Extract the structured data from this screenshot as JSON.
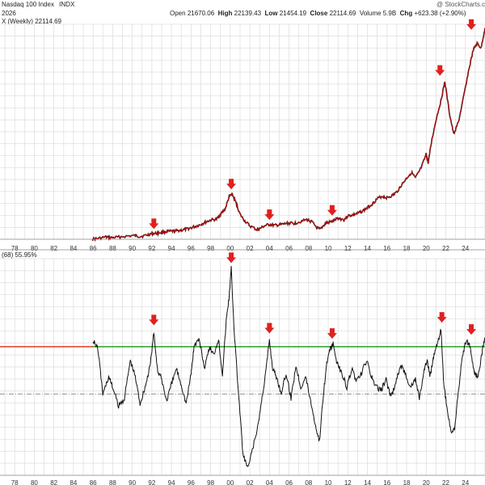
{
  "header": {
    "index_name": "Nasdaq 100 Index",
    "exchange": "INDX",
    "date_fragment": "2026",
    "watermark": "@ StockCharts.com",
    "open_label": "Open",
    "open_value": "21670.06",
    "high_label": "High",
    "high_value": "22139.43",
    "low_label": "Low",
    "low_value": "21454.19",
    "close_label": "Close",
    "close_value": "22114.69",
    "volume_label": "Volume",
    "volume_value": "5.9B",
    "chg_label": "Chg",
    "chg_value": "+623.38 (+2.90%)",
    "upper_legend": "X (Weekly) 22114.69",
    "lower_legend": "(68) 55.95%"
  },
  "chart_data": [
    {
      "type": "line",
      "panel": "upper",
      "series": [
        {
          "color": "#c00000",
          "x": [
            1985.9,
            1986.5,
            1987.3,
            1987.8,
            1988.5,
            1989.5,
            1990.3,
            1990.8,
            1991.5,
            1992.0,
            1992.5,
            1993.0,
            1993.5,
            1994.0,
            1994.5,
            1995.0,
            1995.5,
            1996.0,
            1996.5,
            1997.0,
            1997.5,
            1998.0,
            1998.6,
            1999.0,
            1999.5,
            1999.9,
            2000.2,
            2000.6,
            2001.0,
            2001.5,
            2002.0,
            2002.7,
            2003.0,
            2003.5,
            2004.0,
            2004.5,
            2005.0,
            2005.5,
            2006.0,
            2006.5,
            2007.0,
            2007.8,
            2008.3,
            2008.9,
            2009.2,
            2009.7,
            2010.0,
            2010.5,
            2011.0,
            2011.6,
            2012.0,
            2012.5,
            2013.0,
            2013.5,
            2014.0,
            2014.5,
            2015.0,
            2015.5,
            2016.0,
            2016.5,
            2017.0,
            2017.5,
            2018.0,
            2018.5,
            2018.9,
            2019.5,
            2020.0,
            2020.2,
            2020.6,
            2021.0,
            2021.5,
            2021.9,
            2022.4,
            2022.8,
            2023.3,
            2023.8,
            2024.3,
            2024.8,
            2025.2,
            2025.6,
            2026.0
          ],
          "y": [
            15,
            80,
            230,
            150,
            220,
            330,
            380,
            280,
            430,
            590,
            620,
            720,
            800,
            830,
            870,
            950,
            1050,
            1200,
            1350,
            1550,
            1800,
            2000,
            2100,
            2600,
            3200,
            4500,
            4700,
            3800,
            2600,
            1900,
            1400,
            1000,
            1100,
            1400,
            1550,
            1450,
            1500,
            1600,
            1700,
            1650,
            1800,
            2050,
            1850,
            1150,
            1050,
            1650,
            1750,
            1900,
            2200,
            2050,
            2450,
            2550,
            2700,
            2950,
            3300,
            3700,
            4250,
            4500,
            4350,
            4550,
            4950,
            5700,
            6400,
            7000,
            6400,
            7500,
            8900,
            8000,
            10500,
            12500,
            14500,
            16500,
            13000,
            11000,
            12300,
            14800,
            17500,
            19800,
            20500,
            20000,
            22114.69
          ]
        }
      ],
      "annotations": [
        {
          "type": "arrow",
          "x": 1992.2,
          "y": 650
        },
        {
          "type": "arrow",
          "x": 2000.1,
          "y": 4800
        },
        {
          "type": "arrow",
          "x": 2004.0,
          "y": 1600
        },
        {
          "type": "arrow",
          "x": 2010.4,
          "y": 2050
        },
        {
          "type": "arrow",
          "x": 2021.4,
          "y": 16700
        },
        {
          "type": "arrow",
          "x": 2024.6,
          "y": 21500
        }
      ]
    },
    {
      "type": "line",
      "panel": "lower",
      "series": [
        {
          "color": "#111111",
          "x": [
            1986.0,
            1986.5,
            1987.0,
            1987.6,
            1988.0,
            1988.6,
            1989.2,
            1989.8,
            1990.3,
            1990.8,
            1991.3,
            1991.8,
            1992.2,
            1992.6,
            1993.0,
            1993.5,
            1994.0,
            1994.5,
            1995.0,
            1995.5,
            1996.0,
            1996.3,
            1996.8,
            1997.4,
            1997.9,
            1998.3,
            1998.8,
            1999.2,
            1999.6,
            1999.9,
            2000.1,
            2000.4,
            2000.8,
            2001.3,
            2001.8,
            2002.3,
            2002.8,
            2003.2,
            2003.6,
            2004.0,
            2004.3,
            2004.7,
            2005.2,
            2005.7,
            2006.2,
            2006.7,
            2007.2,
            2007.7,
            2008.2,
            2008.7,
            2009.1,
            2009.5,
            2009.9,
            2010.2,
            2010.5,
            2010.9,
            2011.4,
            2011.9,
            2012.4,
            2012.9,
            2013.4,
            2013.9,
            2014.4,
            2014.9,
            2015.4,
            2015.9,
            2016.4,
            2016.9,
            2017.4,
            2017.9,
            2018.4,
            2018.9,
            2019.3,
            2019.8,
            2020.1,
            2020.4,
            2020.8,
            2021.2,
            2021.5,
            2021.8,
            2022.2,
            2022.6,
            2022.9,
            2023.3,
            2023.7,
            2024.1,
            2024.5,
            2024.9,
            2025.3,
            2025.7,
            2026.0
          ],
          "y": [
            55,
            48,
            15,
            28,
            20,
            6,
            12,
            40,
            28,
            8,
            20,
            35,
            60,
            32,
            26,
            10,
            22,
            34,
            22,
            8,
            30,
            50,
            56,
            34,
            50,
            44,
            56,
            30,
            70,
            88,
            108,
            62,
            20,
            -30,
            -40,
            -25,
            -10,
            10,
            30,
            55,
            35,
            28,
            16,
            30,
            12,
            36,
            20,
            28,
            10,
            -8,
            -20,
            15,
            40,
            48,
            52,
            38,
            30,
            20,
            34,
            24,
            30,
            40,
            28,
            20,
            18,
            26,
            12,
            24,
            36,
            30,
            20,
            26,
            12,
            32,
            40,
            28,
            45,
            55,
            62,
            22,
            0,
            -15,
            -10,
            18,
            44,
            55,
            50,
            30,
            28,
            46,
            55.95
          ]
        }
      ],
      "reference_lines": [
        {
          "y": 50,
          "color": "#2a9d2a"
        },
        {
          "y": 15,
          "color": "#777777"
        }
      ],
      "annotations": [
        {
          "type": "arrow",
          "x": 1992.2,
          "y": 64
        },
        {
          "type": "arrow",
          "x": 2000.1,
          "y": 110
        },
        {
          "type": "arrow",
          "x": 2004.0,
          "y": 58
        },
        {
          "type": "arrow",
          "x": 2010.4,
          "y": 54
        },
        {
          "type": "arrow",
          "x": 2021.6,
          "y": 66
        },
        {
          "type": "arrow",
          "x": 2024.6,
          "y": 57
        }
      ]
    }
  ],
  "x_axis": {
    "tick_years": [
      1978,
      1980,
      1982,
      1984,
      1986,
      1988,
      1990,
      1992,
      1994,
      1996,
      1998,
      2000,
      2002,
      2004,
      2006,
      2008,
      2010,
      2012,
      2014,
      2016,
      2018,
      2020,
      2022,
      2024
    ],
    "tick_labels": [
      "78",
      "80",
      "82",
      "84",
      "86",
      "88",
      "90",
      "92",
      "94",
      "96",
      "98",
      "00",
      "02",
      "04",
      "06",
      "08",
      "10",
      "12",
      "14",
      "16",
      "18",
      "20",
      "22",
      "24"
    ],
    "upper_xlim": [
      1976.5,
      2026.0
    ],
    "upper_ylim": [
      0,
      22500
    ],
    "lower_ylim": [
      -45,
      115
    ]
  }
}
